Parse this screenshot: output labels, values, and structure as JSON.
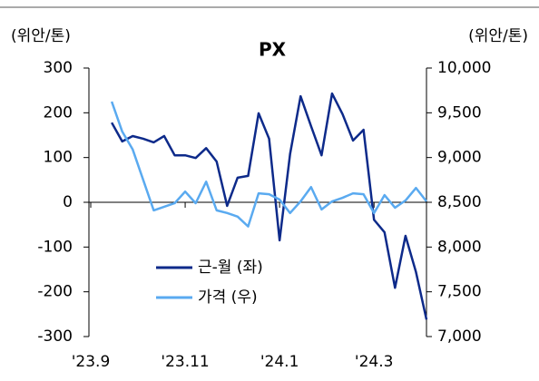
{
  "chart_data": {
    "type": "line",
    "title": "PX",
    "y_label": "(위안/톤)",
    "y2_label": "(위안/톤)",
    "categories": [
      "'23.9",
      null,
      null,
      null,
      null,
      null,
      null,
      null,
      null,
      "'23.11",
      null,
      null,
      null,
      null,
      null,
      null,
      null,
      null,
      "'24.1",
      null,
      null,
      null,
      null,
      null,
      null,
      null,
      null,
      "'24.3",
      null,
      null,
      null,
      null,
      null
    ],
    "series": [
      {
        "name": "근-월 (좌)",
        "color": "#0d2a8a",
        "axis": "y",
        "values": [
          null,
          null,
          178,
          136,
          148,
          142,
          134,
          148,
          105,
          105,
          99,
          121,
          91,
          -8,
          55,
          59,
          199,
          142,
          -85,
          108,
          237,
          170,
          105,
          243,
          197,
          138,
          162,
          -39,
          -67,
          -191,
          -75,
          -156,
          -262
        ]
      },
      {
        "name": "가격 (우)",
        "color": "#5aaaf0",
        "axis": "y2",
        "values": [
          null,
          null,
          9625,
          9290,
          9090,
          8750,
          8410,
          8450,
          8490,
          8620,
          8490,
          8730,
          8410,
          8380,
          8340,
          8230,
          8600,
          8590,
          8530,
          8380,
          8510,
          8670,
          8420,
          8510,
          8550,
          8600,
          8590,
          8380,
          8580,
          8440,
          8520,
          8660,
          8510
        ]
      }
    ],
    "ylim": [
      -300,
      300
    ],
    "yticks": [
      -300,
      -200,
      -100,
      0,
      100,
      200,
      300
    ],
    "y2lim": [
      7000,
      10000
    ],
    "y2ticks": [
      {
        "value": 7000,
        "label": "7,000"
      },
      {
        "value": 7500,
        "label": "7,500"
      },
      {
        "value": 8000,
        "label": "8,000"
      },
      {
        "value": 8500,
        "label": "8,500"
      },
      {
        "value": 9000,
        "label": "9,000"
      },
      {
        "value": 9500,
        "label": "9,500"
      },
      {
        "value": 10000,
        "label": "10,000"
      }
    ]
  }
}
